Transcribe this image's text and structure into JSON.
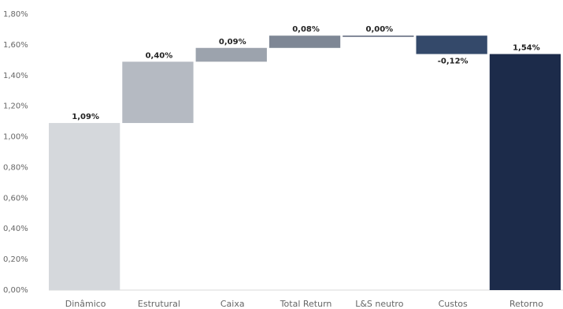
{
  "chart_data": {
    "type": "waterfall",
    "categories": [
      "Dinâmico",
      "Estrutural",
      "Caixa",
      "Total Return",
      "L&S neutro",
      "Custos",
      "Retorno"
    ],
    "values": [
      1.09,
      0.4,
      0.09,
      0.08,
      0.0,
      -0.12,
      1.54
    ],
    "value_labels": [
      "1,09%",
      "0,40%",
      "0,09%",
      "0,08%",
      "0,00%",
      "-0,12%",
      "1,54%"
    ],
    "colors": [
      "#d5d8dc",
      "#b5bac2",
      "#9ca3ad",
      "#7e8795",
      "#5a6478",
      "#34496a",
      "#1c2b4a"
    ],
    "ylim": [
      0,
      1.8
    ],
    "yticks": [
      {
        "value": 0,
        "label": "0,00%"
      },
      {
        "value": 0.2,
        "label": "0,20%"
      },
      {
        "value": 0.4,
        "label": "0,40%"
      },
      {
        "value": 0.6,
        "label": "0,60%"
      },
      {
        "value": 0.8,
        "label": "0,80%"
      },
      {
        "value": 1.0,
        "label": "1,00%"
      },
      {
        "value": 1.2,
        "label": "1,20%"
      },
      {
        "value": 1.4,
        "label": "1,40%"
      },
      {
        "value": 1.6,
        "label": "1,60%"
      },
      {
        "value": 1.8,
        "label": "1,80%"
      }
    ]
  }
}
